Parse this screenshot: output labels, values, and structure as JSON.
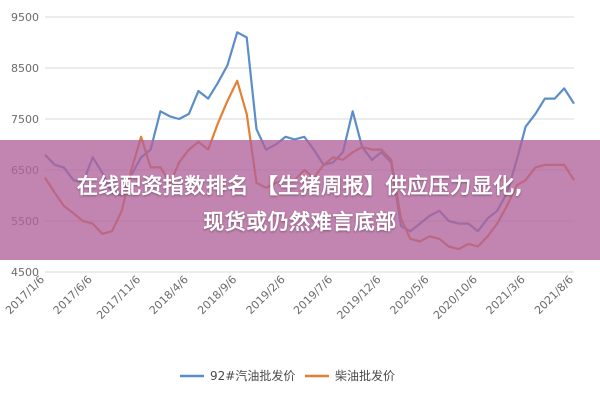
{
  "chart_data": {
    "type": "line",
    "title": "",
    "xlabel": "",
    "ylabel": "",
    "ylim": [
      4500,
      9500
    ],
    "yticks": [
      4500,
      5500,
      6500,
      7500,
      8500,
      9500
    ],
    "xticks": [
      "2017/1/6",
      "2017/6/6",
      "2017/11/6",
      "2018/4/6",
      "2018/9/6",
      "2019/2/6",
      "2019/7/6",
      "2019/12/6",
      "2020/5/6",
      "2020/10/6",
      "2021/3/6",
      "2021/8/6"
    ],
    "grid": "horizontal",
    "legend_position": "bottom",
    "series": [
      {
        "name": "92#汽油批发价",
        "color": "#5b8ec9",
        "x": [
          "2017/1/6",
          "2017/2/6",
          "2017/3/6",
          "2017/4/6",
          "2017/5/6",
          "2017/6/6",
          "2017/7/6",
          "2017/8/6",
          "2017/9/6",
          "2017/10/6",
          "2017/11/6",
          "2017/12/6",
          "2018/1/6",
          "2018/2/6",
          "2018/3/6",
          "2018/4/6",
          "2018/5/6",
          "2018/6/6",
          "2018/7/6",
          "2018/8/6",
          "2018/9/6",
          "2018/10/6",
          "2018/11/6",
          "2018/12/6",
          "2019/1/6",
          "2019/2/6",
          "2019/3/6",
          "2019/4/6",
          "2019/5/6",
          "2019/6/6",
          "2019/7/6",
          "2019/8/6",
          "2019/9/6",
          "2019/10/6",
          "2019/11/6",
          "2019/12/6",
          "2020/1/6",
          "2020/2/6",
          "2020/3/6",
          "2020/4/6",
          "2020/5/6",
          "2020/6/6",
          "2020/7/6",
          "2020/8/6",
          "2020/9/6",
          "2020/10/6",
          "2020/11/6",
          "2020/12/6",
          "2021/1/6",
          "2021/2/6",
          "2021/3/6",
          "2021/4/6",
          "2021/5/6",
          "2021/6/6",
          "2021/7/6",
          "2021/8/6"
        ],
        "values": [
          6800,
          6600,
          6550,
          6300,
          6250,
          6750,
          6450,
          6050,
          6000,
          6400,
          6750,
          6900,
          7650,
          7550,
          7500,
          7600,
          8050,
          7900,
          8200,
          8550,
          9200,
          9100,
          7300,
          6900,
          7000,
          7150,
          7100,
          7150,
          6900,
          6600,
          6650,
          6850,
          7650,
          6950,
          6700,
          6850,
          6650,
          5400,
          5300,
          5450,
          5600,
          5700,
          5500,
          5450,
          5450,
          5300,
          5550,
          5700,
          6050,
          6700,
          7350,
          7600,
          7900,
          7900,
          8100,
          7800
        ]
      },
      {
        "name": "柴油批发价",
        "color": "#e57f34",
        "x": [
          "2017/1/6",
          "2017/2/6",
          "2017/3/6",
          "2017/4/6",
          "2017/5/6",
          "2017/6/6",
          "2017/7/6",
          "2017/8/6",
          "2017/9/6",
          "2017/10/6",
          "2017/11/6",
          "2017/12/6",
          "2018/1/6",
          "2018/2/6",
          "2018/3/6",
          "2018/4/6",
          "2018/5/6",
          "2018/6/6",
          "2018/7/6",
          "2018/8/6",
          "2018/9/6",
          "2018/10/6",
          "2018/11/6",
          "2018/12/6",
          "2019/1/6",
          "2019/2/6",
          "2019/3/6",
          "2019/4/6",
          "2019/5/6",
          "2019/6/6",
          "2019/7/6",
          "2019/8/6",
          "2019/9/6",
          "2019/10/6",
          "2019/11/6",
          "2019/12/6",
          "2020/1/6",
          "2020/2/6",
          "2020/3/6",
          "2020/4/6",
          "2020/5/6",
          "2020/6/6",
          "2020/7/6",
          "2020/8/6",
          "2020/9/6",
          "2020/10/6",
          "2020/11/6",
          "2020/12/6",
          "2021/1/6",
          "2021/2/6",
          "2021/3/6",
          "2021/4/6",
          "2021/5/6",
          "2021/6/6",
          "2021/7/6",
          "2021/8/6"
        ],
        "values": [
          6350,
          6050,
          5800,
          5650,
          5500,
          5450,
          5250,
          5300,
          5700,
          6500,
          7150,
          6550,
          6550,
          6250,
          6650,
          6900,
          7050,
          6900,
          7400,
          7850,
          8250,
          7600,
          6250,
          6150,
          6250,
          6300,
          6300,
          6500,
          6350,
          6600,
          6750,
          6700,
          6850,
          6950,
          6900,
          6900,
          6700,
          5550,
          5150,
          5100,
          5200,
          5150,
          5000,
          4950,
          5050,
          5000,
          5200,
          5450,
          5800,
          6200,
          6300,
          6550,
          6600,
          6600,
          6600,
          6300
        ]
      }
    ]
  },
  "banner": {
    "line1": "在线配资指数排名 【生猪周报】供应压力显化,",
    "line2": "现货或仍然难言底部"
  }
}
